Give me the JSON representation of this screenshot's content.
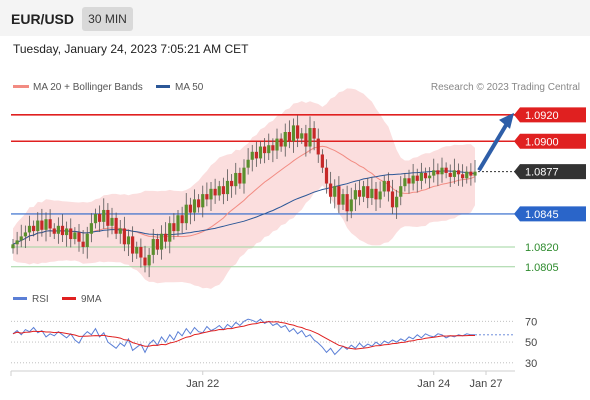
{
  "header": {
    "pair": "EUR/USD",
    "timeframe": "30 MIN",
    "datetime": "Tuesday, January 24, 2023 7:05:21 AM CET"
  },
  "legend": {
    "ma20": "MA 20 + Bollinger Bands",
    "ma50": "MA 50",
    "credit": "Research © 2023 Trading Central",
    "colors": {
      "ma20": "#f28b82",
      "ma50": "#2b5797"
    }
  },
  "chart_data": [
    {
      "type": "candlestick",
      "title": "EUR/USD",
      "ylim": [
        1.0795,
        1.0935
      ],
      "x_labels": [
        {
          "label": "Jan 22",
          "index": 46
        },
        {
          "label": "Jan 24",
          "index": 102
        },
        {
          "label": "Jan 27",
          "index": 118
        }
      ],
      "levels": [
        {
          "label": "1.0920",
          "value": 1.092,
          "kind": "resistance",
          "color": "#e02020"
        },
        {
          "label": "1.0900",
          "value": 1.09,
          "kind": "resistance",
          "color": "#e02020"
        },
        {
          "label": "1.0877",
          "value": 1.0877,
          "kind": "current",
          "color": "#333333"
        },
        {
          "label": "1.0845",
          "value": 1.0845,
          "kind": "support",
          "color": "#2a65c9"
        },
        {
          "label": "1.0820",
          "value": 1.082,
          "kind": "support",
          "color": "#2e8b2e"
        },
        {
          "label": "1.0805",
          "value": 1.0805,
          "kind": "support",
          "color": "#2e8b2e"
        }
      ],
      "forecast": {
        "from": 1.0878,
        "to": 1.092
      },
      "closes": [
        1.0822,
        1.0825,
        1.0828,
        1.0831,
        1.0836,
        1.0832,
        1.084,
        1.0833,
        1.0841,
        1.0834,
        1.083,
        1.0836,
        1.0829,
        1.0834,
        1.0826,
        1.0831,
        1.0824,
        1.082,
        1.083,
        1.0838,
        1.0845,
        1.0839,
        1.0848,
        1.0836,
        1.0842,
        1.083,
        1.0834,
        1.0822,
        1.0828,
        1.0815,
        1.082,
        1.0812,
        1.0806,
        1.0814,
        1.0826,
        1.0818,
        1.083,
        1.0824,
        1.0838,
        1.0832,
        1.0844,
        1.0838,
        1.0852,
        1.0846,
        1.0856,
        1.085,
        1.086,
        1.0856,
        1.0864,
        1.0859,
        1.0866,
        1.086,
        1.087,
        1.0866,
        1.0876,
        1.0868,
        1.088,
        1.0886,
        1.0892,
        1.0887,
        1.0896,
        1.0891,
        1.0897,
        1.0893,
        1.0902,
        1.0896,
        1.0907,
        1.09,
        1.0912,
        1.0902,
        1.0906,
        1.0896,
        1.091,
        1.0902,
        1.089,
        1.088,
        1.0868,
        1.0858,
        1.0866,
        1.0852,
        1.086,
        1.0847,
        1.0856,
        1.0863,
        1.0858,
        1.0866,
        1.0857,
        1.0864,
        1.0856,
        1.0862,
        1.087,
        1.0862,
        1.085,
        1.0858,
        1.0866,
        1.0872,
        1.0868,
        1.0874,
        1.087,
        1.0876,
        1.0872,
        1.0874,
        1.0878,
        1.0875,
        1.088,
        1.0876,
        1.0873,
        1.0878,
        1.0875,
        1.0872,
        1.0877,
        1.0874,
        1.0877
      ]
    },
    {
      "type": "line",
      "title": "RSI",
      "series": [
        {
          "name": "RSI",
          "color": "#5b7fd6"
        },
        {
          "name": "9MA",
          "color": "#e02020"
        }
      ],
      "ylim": [
        25,
        78
      ],
      "y_ticks": [
        70,
        50,
        30
      ],
      "values": [
        58,
        61,
        57,
        62,
        60,
        64,
        59,
        61,
        55,
        58,
        56,
        60,
        57,
        54,
        58,
        52,
        49,
        56,
        60,
        57,
        63,
        55,
        59,
        50,
        47,
        44,
        49,
        46,
        53,
        42,
        45,
        48,
        40,
        48,
        52,
        47,
        55,
        50,
        57,
        52,
        60,
        56,
        63,
        58,
        64,
        60,
        59,
        65,
        61,
        63,
        66,
        62,
        67,
        64,
        69,
        66,
        70,
        72,
        71,
        69,
        72,
        68,
        70,
        66,
        68,
        64,
        66,
        60,
        63,
        58,
        61,
        55,
        57,
        52,
        49,
        45,
        40,
        44,
        38,
        42,
        46,
        43,
        47,
        44,
        49,
        45,
        48,
        46,
        50,
        47,
        51,
        49,
        52,
        50,
        53,
        51,
        55,
        53,
        57,
        54,
        58,
        56,
        55,
        58,
        57,
        54,
        56,
        55,
        57,
        56,
        58,
        57,
        57
      ]
    }
  ]
}
